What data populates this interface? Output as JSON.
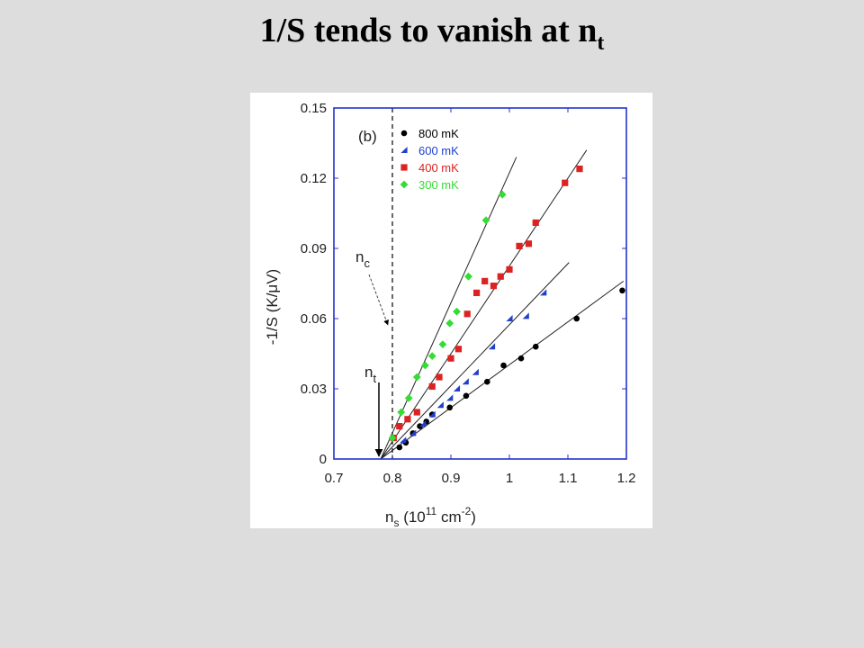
{
  "slide": {
    "title_main": "1/S tends to vanish at n",
    "title_sub": "t"
  },
  "chart_data": {
    "type": "scatter",
    "panel_label": "(b)",
    "xlabel": "n_s (10^11 cm^-2)",
    "xlabel_parts": {
      "n": "n",
      "s": "s",
      "mid": " (10",
      "e1": "11",
      "unit": " cm",
      "e2": "-2",
      "end": ")"
    },
    "ylabel": "-1/S (K/μV)",
    "xlim": [
      0.7,
      1.2
    ],
    "ylim": [
      0,
      0.15
    ],
    "xticks": [
      0.7,
      0.8,
      0.9,
      1.0,
      1.1,
      1.2
    ],
    "xtick_labels": [
      "0.7",
      "0.8",
      "0.9",
      "1",
      "1.1",
      "1.2"
    ],
    "yticks": [
      0,
      0.03,
      0.06,
      0.09,
      0.12,
      0.15
    ],
    "ytick_labels": [
      "0",
      "0.03",
      "0.06",
      "0.09",
      "0.12",
      "0.15"
    ],
    "frame_color": "#2233cc",
    "legend_position": "top-left",
    "series": [
      {
        "name": "800 mK",
        "color": "#000000",
        "marker": "circle",
        "x": [
          0.812,
          0.823,
          0.835,
          0.847,
          0.858,
          0.868,
          0.898,
          0.926,
          0.962,
          0.99,
          1.02,
          1.045,
          1.115,
          1.193
        ],
        "y": [
          0.005,
          0.007,
          0.011,
          0.014,
          0.016,
          0.019,
          0.022,
          0.027,
          0.033,
          0.04,
          0.043,
          0.048,
          0.06,
          0.072
        ]
      },
      {
        "name": "600 mK",
        "color": "#1f3fcc",
        "marker": "triangle",
        "x": [
          0.818,
          0.835,
          0.852,
          0.868,
          0.882,
          0.898,
          0.91,
          0.925,
          0.942,
          0.97,
          1.0,
          1.028,
          1.058
        ],
        "y": [
          0.008,
          0.011,
          0.015,
          0.019,
          0.023,
          0.026,
          0.03,
          0.033,
          0.037,
          0.048,
          0.06,
          0.061,
          0.071
        ]
      },
      {
        "name": "400 mK",
        "color": "#dd2222",
        "marker": "square",
        "x": [
          0.802,
          0.812,
          0.826,
          0.842,
          0.868,
          0.88,
          0.9,
          0.913,
          0.928,
          0.944,
          0.958,
          0.973,
          0.985,
          1.0,
          1.017,
          1.033,
          1.045,
          1.095,
          1.12
        ],
        "y": [
          0.009,
          0.014,
          0.017,
          0.02,
          0.031,
          0.035,
          0.043,
          0.047,
          0.062,
          0.071,
          0.076,
          0.074,
          0.078,
          0.081,
          0.091,
          0.092,
          0.101,
          0.118,
          0.124
        ]
      },
      {
        "name": "300 mK",
        "color": "#33dd33",
        "marker": "diamond",
        "x": [
          0.8,
          0.815,
          0.828,
          0.842,
          0.856,
          0.868,
          0.886,
          0.898,
          0.91,
          0.93,
          0.96,
          0.988
        ],
        "y": [
          0.009,
          0.02,
          0.026,
          0.035,
          0.04,
          0.044,
          0.049,
          0.058,
          0.063,
          0.078,
          0.102,
          0.113
        ]
      }
    ],
    "fit_lines": [
      {
        "x0": 0.78,
        "y0": 0.0,
        "x1": 1.195,
        "y1": 0.076
      },
      {
        "x0": 0.78,
        "y0": 0.0,
        "x1": 1.102,
        "y1": 0.084
      },
      {
        "x0": 0.78,
        "y0": 0.0,
        "x1": 1.132,
        "y1": 0.132
      },
      {
        "x0": 0.78,
        "y0": 0.0,
        "x1": 1.012,
        "y1": 0.129
      }
    ],
    "nc": {
      "x": 0.8,
      "label": "n",
      "sub": "c"
    },
    "nt": {
      "x": 0.78,
      "label": "n",
      "sub": "t"
    }
  }
}
